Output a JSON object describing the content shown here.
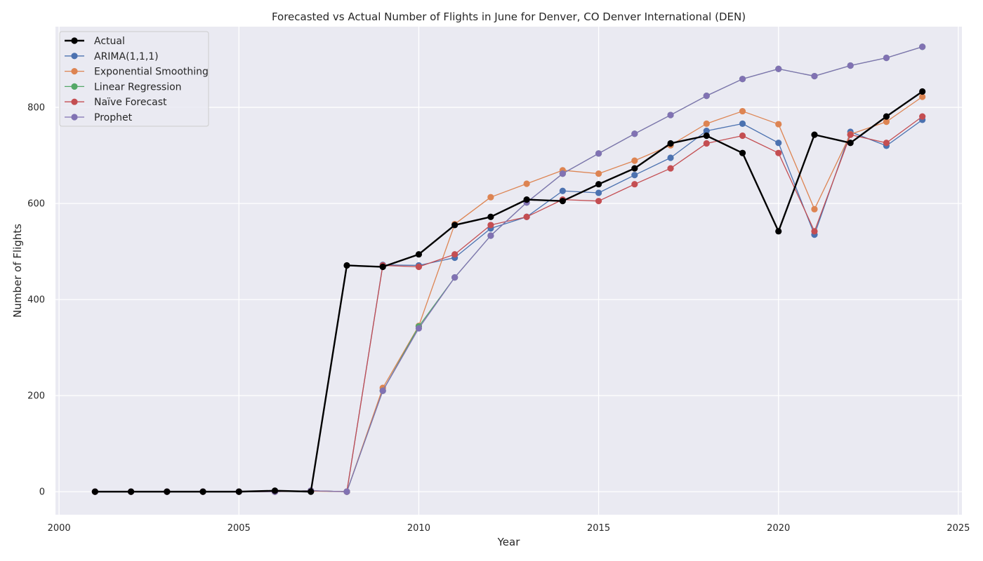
{
  "chart_data": {
    "type": "line",
    "title": "Forecasted vs Actual Number of Flights in June for Denver, CO Denver International (DEN)",
    "xlabel": "Year",
    "ylabel": "Number of Flights",
    "xlim": [
      1999.9,
      2025.1
    ],
    "ylim": [
      -48,
      968
    ],
    "xticks": [
      2000,
      2005,
      2010,
      2015,
      2020,
      2025
    ],
    "yticks": [
      0,
      200,
      400,
      600,
      800
    ],
    "grid": true,
    "legend_position": "top-left",
    "x": [
      2001,
      2002,
      2003,
      2004,
      2005,
      2006,
      2007,
      2008,
      2009,
      2010,
      2011,
      2012,
      2013,
      2014,
      2015,
      2016,
      2017,
      2018,
      2019,
      2020,
      2021,
      2022,
      2023,
      2024
    ],
    "series": [
      {
        "name": "Actual",
        "color": "#000000",
        "values": [
          0,
          0,
          0,
          0,
          0,
          2,
          0,
          471,
          468,
          494,
          555,
          572,
          608,
          605,
          640,
          673,
          725,
          741,
          705,
          542,
          743,
          726,
          781,
          833
        ]
      },
      {
        "name": "ARIMA(1,1,1)",
        "color": "#4c72b0",
        "values": [
          0,
          0,
          0,
          0,
          0,
          0,
          2,
          0,
          472,
          471,
          487,
          548,
          572,
          626,
          622,
          659,
          695,
          751,
          766,
          726,
          535,
          749,
          720,
          774
        ]
      },
      {
        "name": "Exponential Smoothing",
        "color": "#dd8452",
        "values": [
          0,
          0,
          0,
          0,
          0,
          0,
          1,
          0,
          216,
          345,
          557,
          613,
          641,
          669,
          662,
          689,
          721,
          766,
          792,
          765,
          588,
          744,
          770,
          822
        ]
      },
      {
        "name": "Linear Regression",
        "color": "#55a868",
        "values": [
          0,
          0,
          0,
          0,
          0,
          0,
          2,
          0,
          210,
          344,
          446,
          533,
          602,
          662,
          704,
          745,
          784,
          824,
          859,
          880,
          865,
          887,
          903,
          926
        ]
      },
      {
        "name": "Naïve Forecast",
        "color": "#c44e52",
        "values": [
          0,
          0,
          0,
          0,
          0,
          0,
          2,
          0,
          471,
          468,
          494,
          555,
          572,
          608,
          605,
          640,
          673,
          725,
          741,
          705,
          542,
          743,
          726,
          781
        ]
      },
      {
        "name": "Prophet",
        "color": "#8172b3",
        "values": [
          0,
          0,
          0,
          0,
          0,
          0,
          2,
          0,
          210,
          340,
          446,
          533,
          602,
          662,
          704,
          745,
          784,
          824,
          859,
          880,
          865,
          887,
          903,
          926
        ]
      }
    ]
  }
}
